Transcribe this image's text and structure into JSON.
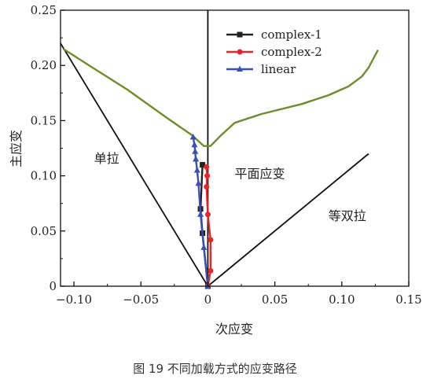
{
  "caption": "图 19   不同加载方式的应变路径",
  "chart_data": {
    "type": "line",
    "xlabel": "次应变",
    "ylabel": "主应变",
    "xlim": [
      -0.11,
      0.15
    ],
    "ylim": [
      0,
      0.25
    ],
    "xticks": [
      -0.1,
      -0.05,
      0,
      0.05,
      0.1,
      0.15
    ],
    "xtick_labels": [
      "−0.10",
      "−0.05",
      "0",
      "0.05",
      "0.10",
      "0.15"
    ],
    "yticks": [
      0,
      0.05,
      0.1,
      0.15,
      0.2,
      0.25
    ],
    "ytick_labels": [
      "0",
      "0.05",
      "0.10",
      "0.15",
      "0.20",
      "0.25"
    ],
    "legend_position": "top-center",
    "colors": {
      "complex1": "#222222",
      "complex2": "#e8262a",
      "linear": "#3a4fb4",
      "flc": "#6e8c2a",
      "guide": "#111111"
    },
    "region_labels": [
      {
        "text": "单拉",
        "x": -0.085,
        "y": 0.112
      },
      {
        "text": "平面应变",
        "x": 0.02,
        "y": 0.098
      },
      {
        "text": "等双拉",
        "x": 0.09,
        "y": 0.06
      }
    ],
    "guide_lines": [
      {
        "points": [
          [
            -0.11,
            0.22
          ],
          [
            0,
            0
          ],
          [
            0.12,
            0.12
          ]
        ]
      },
      {
        "points": [
          [
            0,
            0
          ],
          [
            0,
            0.25
          ]
        ]
      }
    ],
    "forming_limit_curve": [
      [
        -0.108,
        0.215
      ],
      [
        -0.09,
        0.201
      ],
      [
        -0.06,
        0.178
      ],
      [
        -0.03,
        0.152
      ],
      [
        -0.012,
        0.137
      ],
      [
        -0.003,
        0.127
      ],
      [
        0.002,
        0.127
      ],
      [
        0.01,
        0.137
      ],
      [
        0.02,
        0.148
      ],
      [
        0.04,
        0.156
      ],
      [
        0.07,
        0.165
      ],
      [
        0.09,
        0.173
      ],
      [
        0.105,
        0.181
      ],
      [
        0.115,
        0.19
      ],
      [
        0.12,
        0.198
      ],
      [
        0.127,
        0.214
      ]
    ],
    "series": [
      {
        "name": "complex-1",
        "marker": "square",
        "points": [
          [
            0,
            0
          ],
          [
            -0.004,
            0.048
          ],
          [
            -0.0055,
            0.07
          ],
          [
            -0.004,
            0.11
          ]
        ]
      },
      {
        "name": "complex-2",
        "marker": "circle",
        "points": [
          [
            0,
            0
          ],
          [
            0.002,
            0.014
          ],
          [
            0.002,
            0.042
          ],
          [
            0,
            0.065
          ],
          [
            -0.001,
            0.09
          ],
          [
            -0.0005,
            0.1
          ],
          [
            -0.001,
            0.108
          ]
        ]
      },
      {
        "name": "linear",
        "marker": "triangle",
        "points": [
          [
            0,
            0
          ],
          [
            -0.003,
            0.035
          ],
          [
            -0.0055,
            0.065
          ],
          [
            -0.007,
            0.093
          ],
          [
            -0.008,
            0.105
          ],
          [
            -0.009,
            0.115
          ],
          [
            -0.0095,
            0.122
          ],
          [
            -0.01,
            0.128
          ],
          [
            -0.011,
            0.135
          ]
        ]
      }
    ]
  }
}
